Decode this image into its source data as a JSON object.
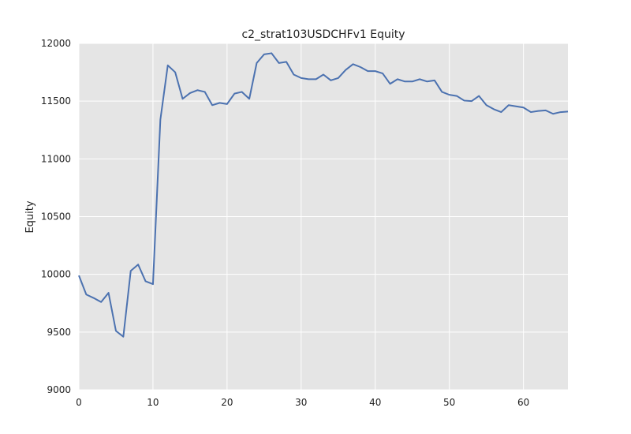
{
  "chart_data": {
    "type": "line",
    "title": "c2_strat103USDCHFv1 Equity",
    "xlabel": "",
    "ylabel": "Equity",
    "xlim": [
      0,
      66
    ],
    "ylim": [
      9000,
      12000
    ],
    "xticks": [
      0,
      10,
      20,
      30,
      40,
      50,
      60
    ],
    "yticks": [
      9000,
      9500,
      10000,
      10500,
      11000,
      11500,
      12000
    ],
    "grid": true,
    "colors": {
      "plot_bg": "#e5e5e5",
      "grid": "#ffffff",
      "line": "#4c72b0"
    },
    "series": [
      {
        "x": [
          0,
          1,
          2,
          3,
          4,
          5,
          6,
          7,
          8,
          9,
          10,
          11,
          12,
          13,
          14,
          15,
          16,
          17,
          18,
          19,
          20,
          21,
          22,
          23,
          24,
          25,
          26,
          27,
          28,
          29,
          30,
          31,
          32,
          33,
          34,
          35,
          36,
          37,
          38,
          39,
          40,
          41,
          42,
          43,
          44,
          45,
          46,
          47,
          48,
          49,
          50,
          51,
          52,
          53,
          54,
          55,
          56,
          57,
          58,
          59,
          60,
          61,
          62,
          63,
          64,
          65,
          66
        ],
        "values": [
          9990,
          9825,
          9795,
          9760,
          9840,
          9510,
          9460,
          10030,
          10085,
          9940,
          9915,
          11340,
          11810,
          11750,
          11520,
          11570,
          11595,
          11580,
          11465,
          11485,
          11475,
          11565,
          11580,
          11520,
          11830,
          11905,
          11915,
          11830,
          11840,
          11730,
          11700,
          11690,
          11690,
          11730,
          11680,
          11700,
          11770,
          11820,
          11795,
          11760,
          11760,
          11740,
          11650,
          11690,
          11670,
          11670,
          11690,
          11670,
          11680,
          11580,
          11555,
          11545,
          11505,
          11500,
          11545,
          11465,
          11430,
          11405,
          11465,
          11455,
          11445,
          11405,
          11415,
          11420,
          11390,
          11405,
          11410
        ]
      }
    ]
  }
}
